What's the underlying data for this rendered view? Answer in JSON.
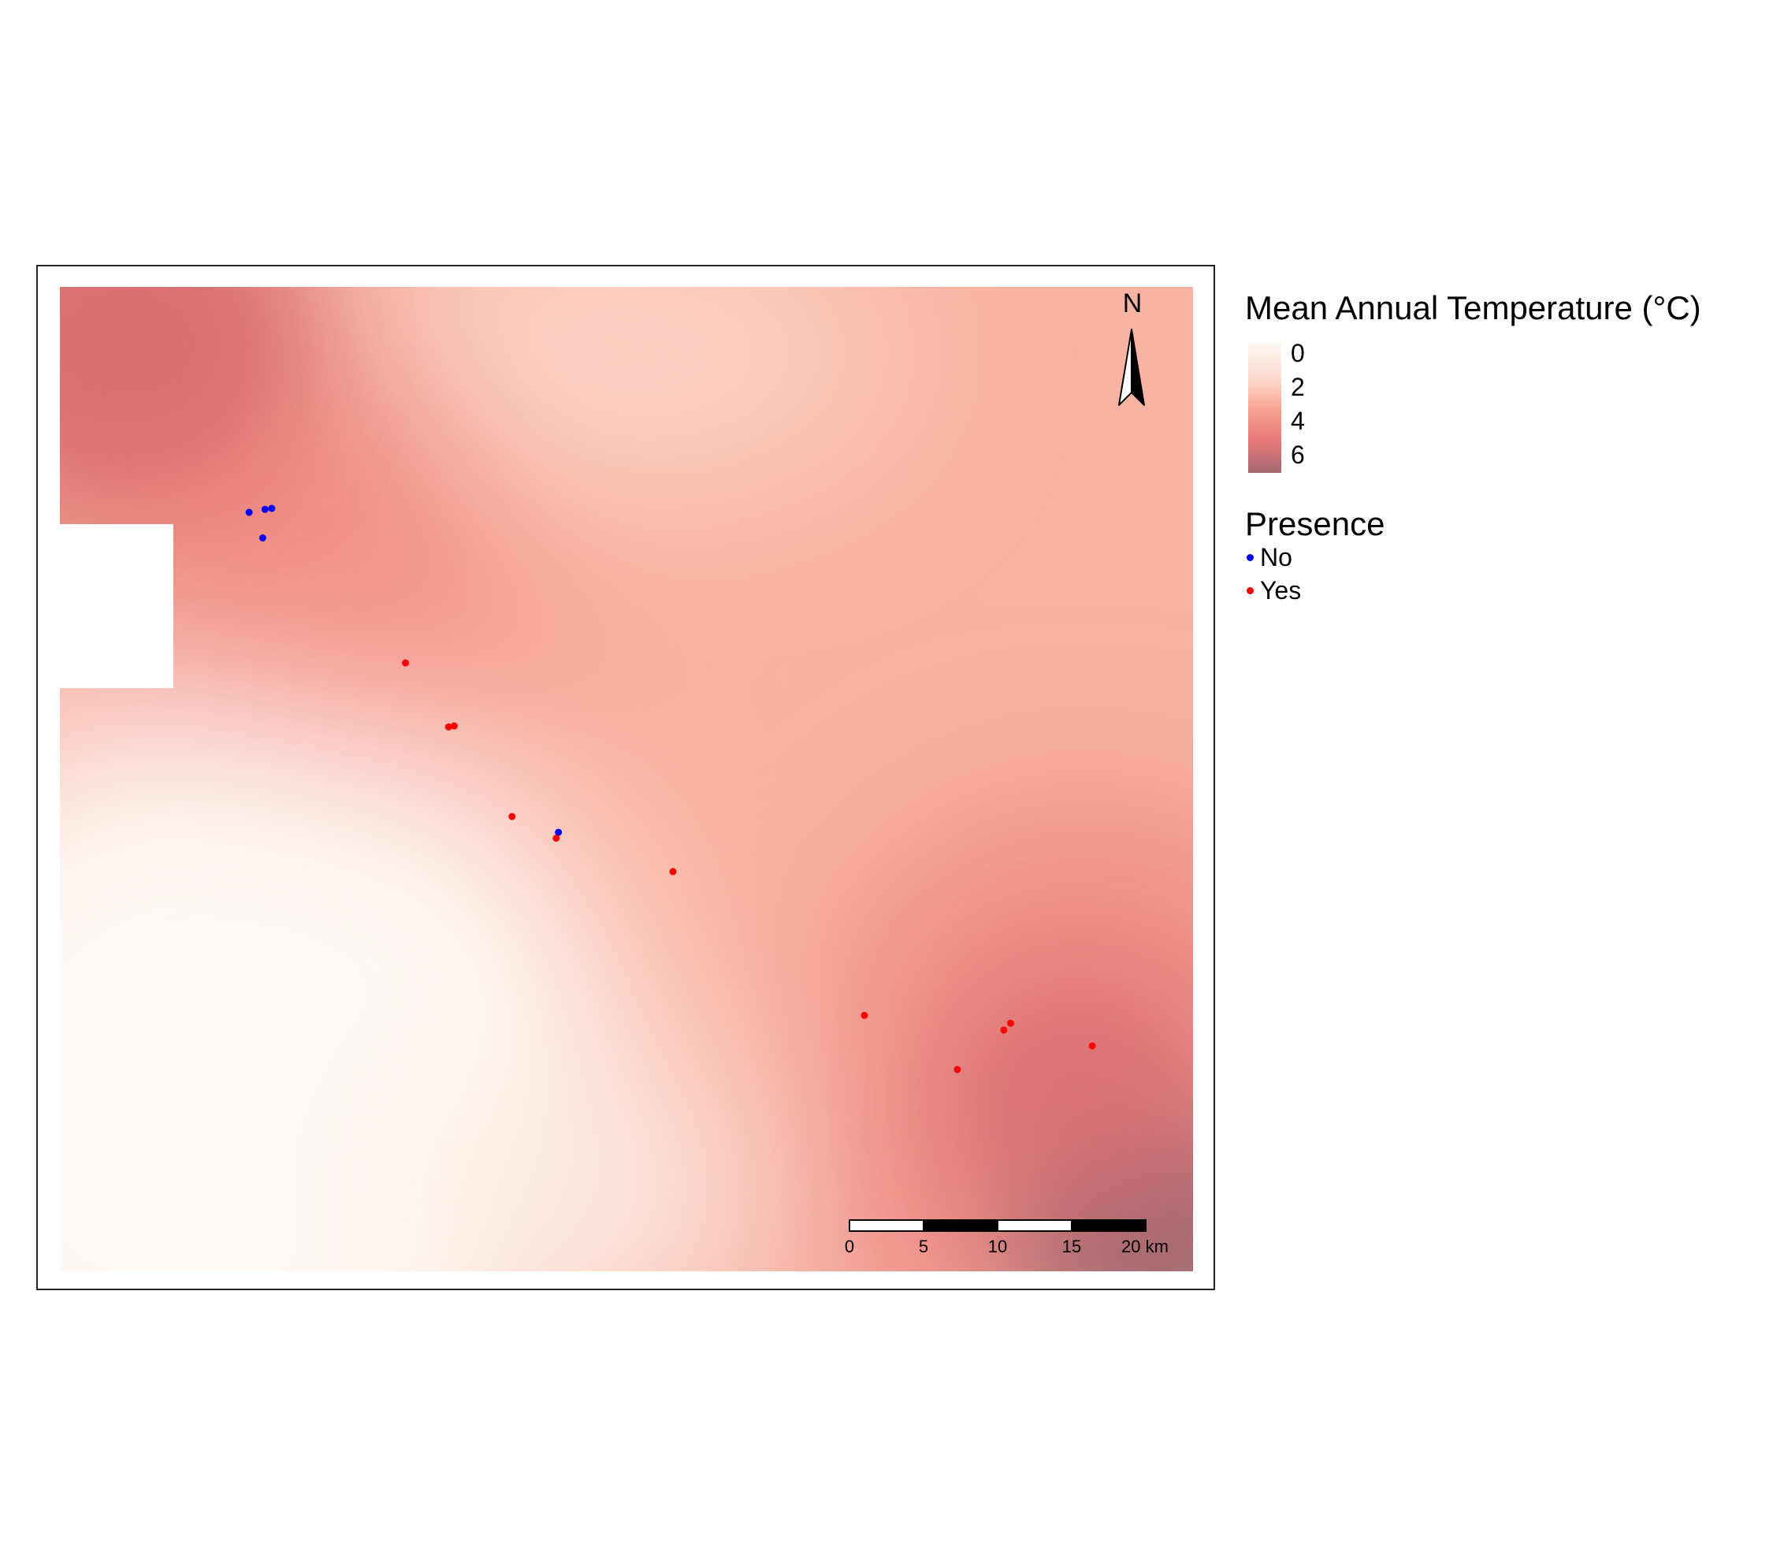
{
  "map": {
    "scale_bar": {
      "ticks": [
        "0",
        "5",
        "10",
        "15",
        "20 km"
      ]
    },
    "north_arrow": {
      "label": "N"
    },
    "sites": [
      {
        "presence": "No",
        "lon": 0.167,
        "lat": 0.771
      },
      {
        "presence": "No",
        "lon": 0.181,
        "lat": 0.774
      },
      {
        "presence": "No",
        "lon": 0.187,
        "lat": 0.775
      },
      {
        "presence": "No",
        "lon": 0.179,
        "lat": 0.745
      },
      {
        "presence": "Yes",
        "lon": 0.305,
        "lat": 0.618
      },
      {
        "presence": "Yes",
        "lon": 0.343,
        "lat": 0.553
      },
      {
        "presence": "Yes",
        "lon": 0.348,
        "lat": 0.554
      },
      {
        "presence": "Yes",
        "lon": 0.399,
        "lat": 0.462
      },
      {
        "presence": "No",
        "lon": 0.44,
        "lat": 0.446
      },
      {
        "presence": "Yes",
        "lon": 0.438,
        "lat": 0.44
      },
      {
        "presence": "Yes",
        "lon": 0.541,
        "lat": 0.406
      },
      {
        "presence": "Yes",
        "lon": 0.71,
        "lat": 0.26
      },
      {
        "presence": "Yes",
        "lon": 0.792,
        "lat": 0.205
      },
      {
        "presence": "Yes",
        "lon": 0.833,
        "lat": 0.245
      },
      {
        "presence": "Yes",
        "lon": 0.839,
        "lat": 0.252
      },
      {
        "presence": "Yes",
        "lon": 0.911,
        "lat": 0.229
      }
    ],
    "colors": {
      "No": "#0000ff",
      "Yes": "#ff0000"
    }
  },
  "legend": {
    "temperature": {
      "title": "Mean Annual Temperature (°C)",
      "labels": [
        "0",
        "2",
        "4",
        "6"
      ]
    },
    "presence": {
      "title": "Presence",
      "items": [
        {
          "label": "No",
          "color": "#0000ff"
        },
        {
          "label": "Yes",
          "color": "#ff0000"
        }
      ]
    }
  }
}
